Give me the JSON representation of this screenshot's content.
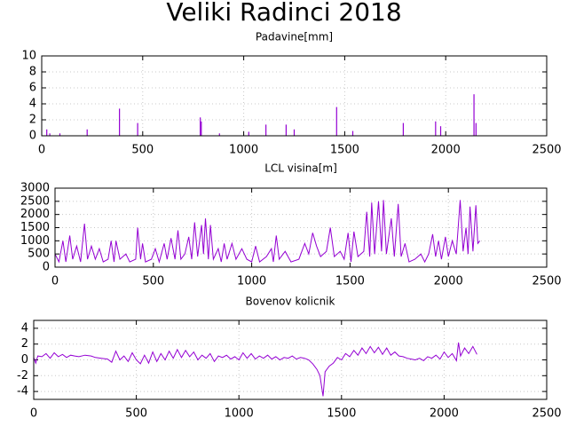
{
  "title": "Veliki Radinci 2018",
  "chart_data": [
    {
      "type": "impulse",
      "title": "Padavine[mm]",
      "color": "#9400d3",
      "grid": true,
      "xlim": [
        0,
        2500
      ],
      "xticks": [
        0,
        500,
        1000,
        1500,
        2000,
        2500
      ],
      "ylim": [
        0,
        10
      ],
      "yticks": [
        0,
        2,
        4,
        6,
        8,
        10
      ],
      "x": [
        25,
        40,
        90,
        225,
        385,
        475,
        785,
        790,
        880,
        1025,
        1110,
        1210,
        1250,
        1460,
        1540,
        1790,
        1950,
        1975,
        2140,
        2150
      ],
      "values": [
        0.8,
        0.3,
        0.3,
        0.8,
        3.4,
        1.6,
        2.3,
        1.8,
        0.3,
        0.5,
        1.4,
        1.4,
        0.8,
        3.6,
        0.6,
        1.6,
        1.8,
        1.2,
        5.2,
        1.6
      ]
    },
    {
      "type": "line",
      "title": "LCL visina[m]",
      "color": "#9400d3",
      "grid": true,
      "xlim": [
        0,
        2500
      ],
      "xticks": [
        0,
        500,
        1000,
        1500,
        2000,
        2500
      ],
      "ylim": [
        0,
        3000
      ],
      "yticks": [
        0,
        500,
        1000,
        1500,
        2000,
        2500,
        3000
      ],
      "x": [
        0,
        20,
        40,
        55,
        75,
        90,
        110,
        130,
        150,
        165,
        185,
        205,
        225,
        245,
        270,
        285,
        300,
        310,
        330,
        360,
        380,
        410,
        420,
        435,
        445,
        460,
        490,
        510,
        530,
        555,
        570,
        590,
        610,
        625,
        640,
        660,
        680,
        695,
        710,
        725,
        745,
        755,
        765,
        780,
        790,
        805,
        830,
        845,
        860,
        875,
        900,
        920,
        950,
        975,
        1000,
        1020,
        1040,
        1075,
        1100,
        1110,
        1125,
        1140,
        1170,
        1200,
        1240,
        1270,
        1290,
        1310,
        1330,
        1350,
        1380,
        1400,
        1420,
        1450,
        1470,
        1490,
        1505,
        1520,
        1540,
        1570,
        1585,
        1600,
        1610,
        1625,
        1645,
        1660,
        1670,
        1685,
        1710,
        1725,
        1745,
        1760,
        1780,
        1800,
        1830,
        1860,
        1880,
        1900,
        1920,
        1935,
        1950,
        1965,
        1985,
        2000,
        2020,
        2040,
        2060,
        2075,
        2090,
        2100,
        2110,
        2125,
        2140,
        2150,
        2160
      ],
      "values": [
        500,
        200,
        1000,
        200,
        1200,
        300,
        800,
        200,
        1650,
        300,
        800,
        300,
        700,
        200,
        300,
        1000,
        200,
        1000,
        300,
        500,
        200,
        300,
        1500,
        300,
        900,
        200,
        300,
        700,
        200,
        900,
        300,
        1100,
        300,
        1400,
        300,
        500,
        1150,
        300,
        1700,
        400,
        1600,
        500,
        1850,
        300,
        1600,
        300,
        700,
        200,
        900,
        300,
        900,
        300,
        700,
        300,
        200,
        800,
        200,
        400,
        700,
        200,
        1200,
        300,
        600,
        200,
        300,
        900,
        500,
        1300,
        800,
        400,
        600,
        1500,
        400,
        600,
        300,
        1300,
        200,
        1350,
        400,
        600,
        2100,
        400,
        2450,
        500,
        2500,
        600,
        2550,
        500,
        1850,
        400,
        2400,
        400,
        900,
        200,
        300,
        500,
        200,
        500,
        1250,
        400,
        1000,
        300,
        1150,
        400,
        1000,
        500,
        2550,
        600,
        1500,
        500,
        2300,
        600,
        2350,
        900,
        1000
      ]
    },
    {
      "type": "line",
      "title": "Bovenov kolicnik",
      "color": "#9400d3",
      "grid": true,
      "xlim": [
        0,
        2500
      ],
      "xticks": [
        0,
        500,
        1000,
        1500,
        2000,
        2500
      ],
      "ylim": [
        -5,
        5
      ],
      "yticks": [
        -4,
        -2,
        0,
        2,
        4
      ],
      "x": [
        0,
        10,
        20,
        40,
        60,
        80,
        100,
        120,
        140,
        160,
        180,
        200,
        220,
        250,
        280,
        300,
        330,
        360,
        380,
        400,
        420,
        440,
        460,
        480,
        500,
        520,
        540,
        560,
        580,
        600,
        620,
        640,
        660,
        680,
        700,
        720,
        740,
        760,
        780,
        800,
        820,
        840,
        860,
        880,
        900,
        920,
        940,
        960,
        980,
        1000,
        1020,
        1040,
        1060,
        1080,
        1100,
        1120,
        1140,
        1160,
        1180,
        1200,
        1220,
        1240,
        1260,
        1280,
        1300,
        1320,
        1340,
        1360,
        1380,
        1395,
        1410,
        1420,
        1440,
        1460,
        1480,
        1500,
        1520,
        1540,
        1560,
        1580,
        1600,
        1620,
        1640,
        1660,
        1680,
        1700,
        1720,
        1740,
        1760,
        1780,
        1800,
        1820,
        1840,
        1860,
        1880,
        1900,
        1920,
        1940,
        1960,
        1980,
        2000,
        2020,
        2040,
        2060,
        2070,
        2080,
        2100,
        2120,
        2140,
        2160
      ],
      "values": [
        0.3,
        -0.4,
        0.5,
        0.4,
        0.8,
        0.2,
        0.9,
        0.4,
        0.7,
        0.3,
        0.6,
        0.5,
        0.4,
        0.6,
        0.5,
        0.3,
        0.2,
        0.1,
        -0.3,
        1.1,
        0.0,
        0.5,
        -0.2,
        0.9,
        0.0,
        -0.5,
        0.6,
        -0.4,
        1.0,
        -0.2,
        0.8,
        0.0,
        1.1,
        0.2,
        1.3,
        0.3,
        1.2,
        0.4,
        1.0,
        0.0,
        0.6,
        0.2,
        0.8,
        -0.2,
        0.5,
        0.3,
        0.6,
        0.1,
        0.4,
        0.0,
        0.9,
        0.2,
        0.8,
        0.1,
        0.5,
        0.2,
        0.6,
        0.1,
        0.4,
        0.0,
        0.3,
        0.2,
        0.5,
        0.1,
        0.3,
        0.2,
        0.0,
        -0.5,
        -1.2,
        -2.0,
        -4.6,
        -1.5,
        -0.8,
        -0.4,
        0.3,
        0.0,
        0.8,
        0.4,
        1.2,
        0.6,
        1.5,
        0.8,
        1.7,
        0.9,
        1.6,
        0.7,
        1.5,
        0.6,
        1.0,
        0.5,
        0.4,
        0.2,
        0.1,
        0.0,
        0.2,
        -0.1,
        0.4,
        0.2,
        0.6,
        0.1,
        1.0,
        0.3,
        0.8,
        -0.1,
        2.2,
        0.5,
        1.5,
        0.8,
        1.7,
        0.7
      ]
    }
  ]
}
